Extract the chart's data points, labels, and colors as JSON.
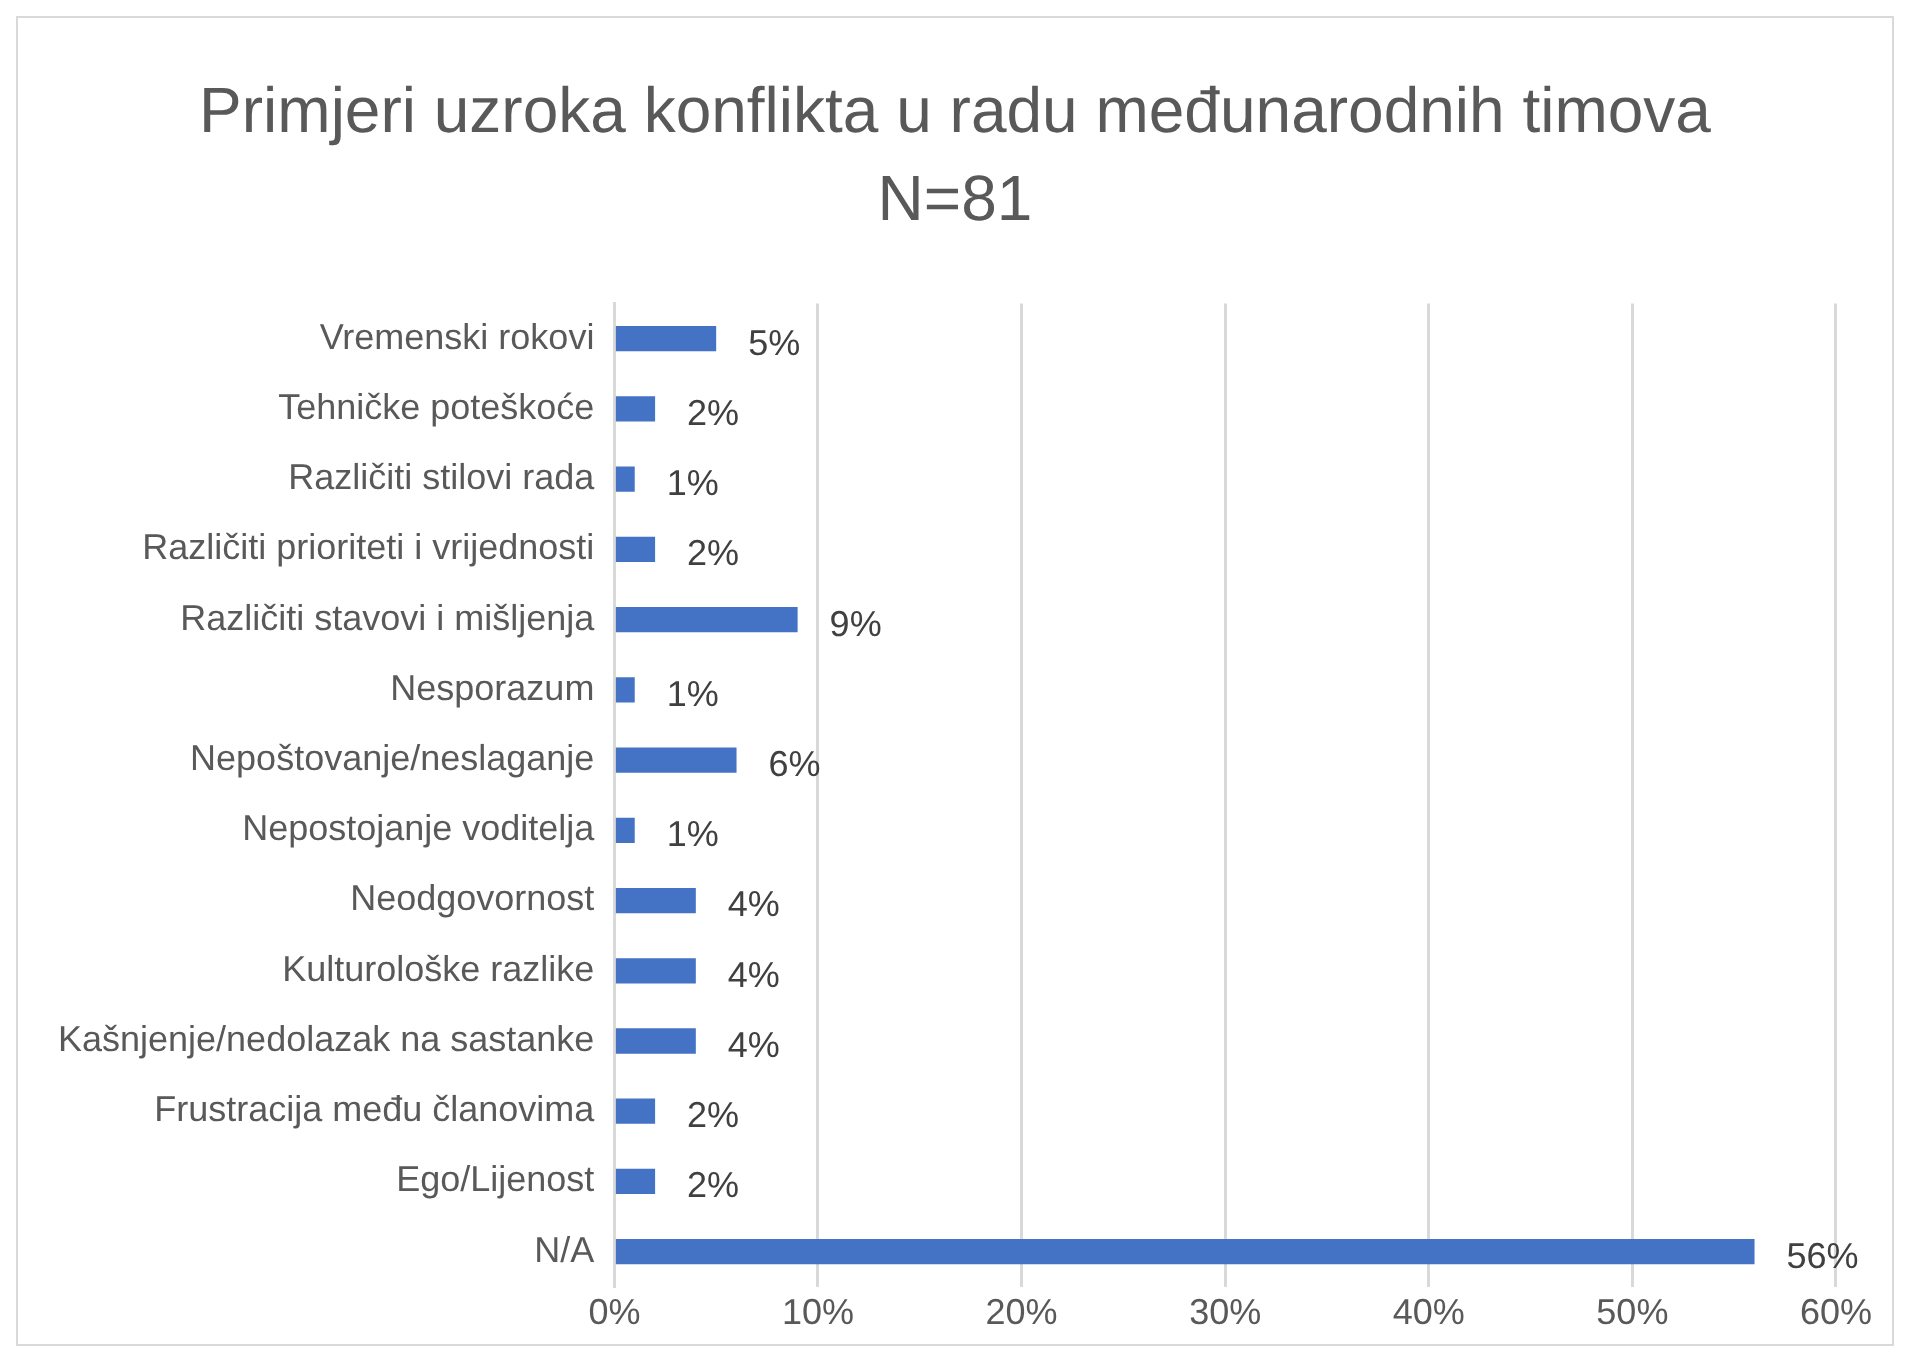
{
  "chart_data": {
    "type": "bar",
    "orientation": "horizontal",
    "title": "Primjeri uzroka konflikta u radu međunarodnih timova N=81",
    "categories": [
      "Vremenski rokovi",
      "Tehničke poteškoće",
      "Različiti stilovi rada",
      "Različiti prioriteti i vrijednosti",
      "Različiti stavovi i mišljenja",
      "Nesporazum",
      "Nepoštovanje/neslaganje",
      "Nepostojanje voditelja",
      "Neodgovornost",
      "Kulturološke razlike",
      "Kašnjenje/nedolazak na sastanke",
      "Frustracija među članovima",
      "Ego/Lijenost",
      "N/A"
    ],
    "values": [
      5,
      2,
      1,
      2,
      9,
      1,
      6,
      1,
      4,
      4,
      4,
      2,
      2,
      56
    ],
    "value_labels": [
      "5%",
      "2%",
      "1%",
      "2%",
      "9%",
      "1%",
      "6%",
      "1%",
      "4%",
      "4%",
      "4%",
      "2%",
      "2%",
      "56%"
    ],
    "color": "#4472c4",
    "xlim": [
      0,
      60
    ],
    "xticks": [
      {
        "value": 0,
        "label": "0%"
      },
      {
        "value": 10,
        "label": "10%"
      },
      {
        "value": 20,
        "label": "20%"
      },
      {
        "value": 30,
        "label": "30%"
      },
      {
        "value": 40,
        "label": "40%"
      },
      {
        "value": 50,
        "label": "50%"
      },
      {
        "value": 60,
        "label": "60%"
      }
    ],
    "grid": "x",
    "legend": false
  }
}
